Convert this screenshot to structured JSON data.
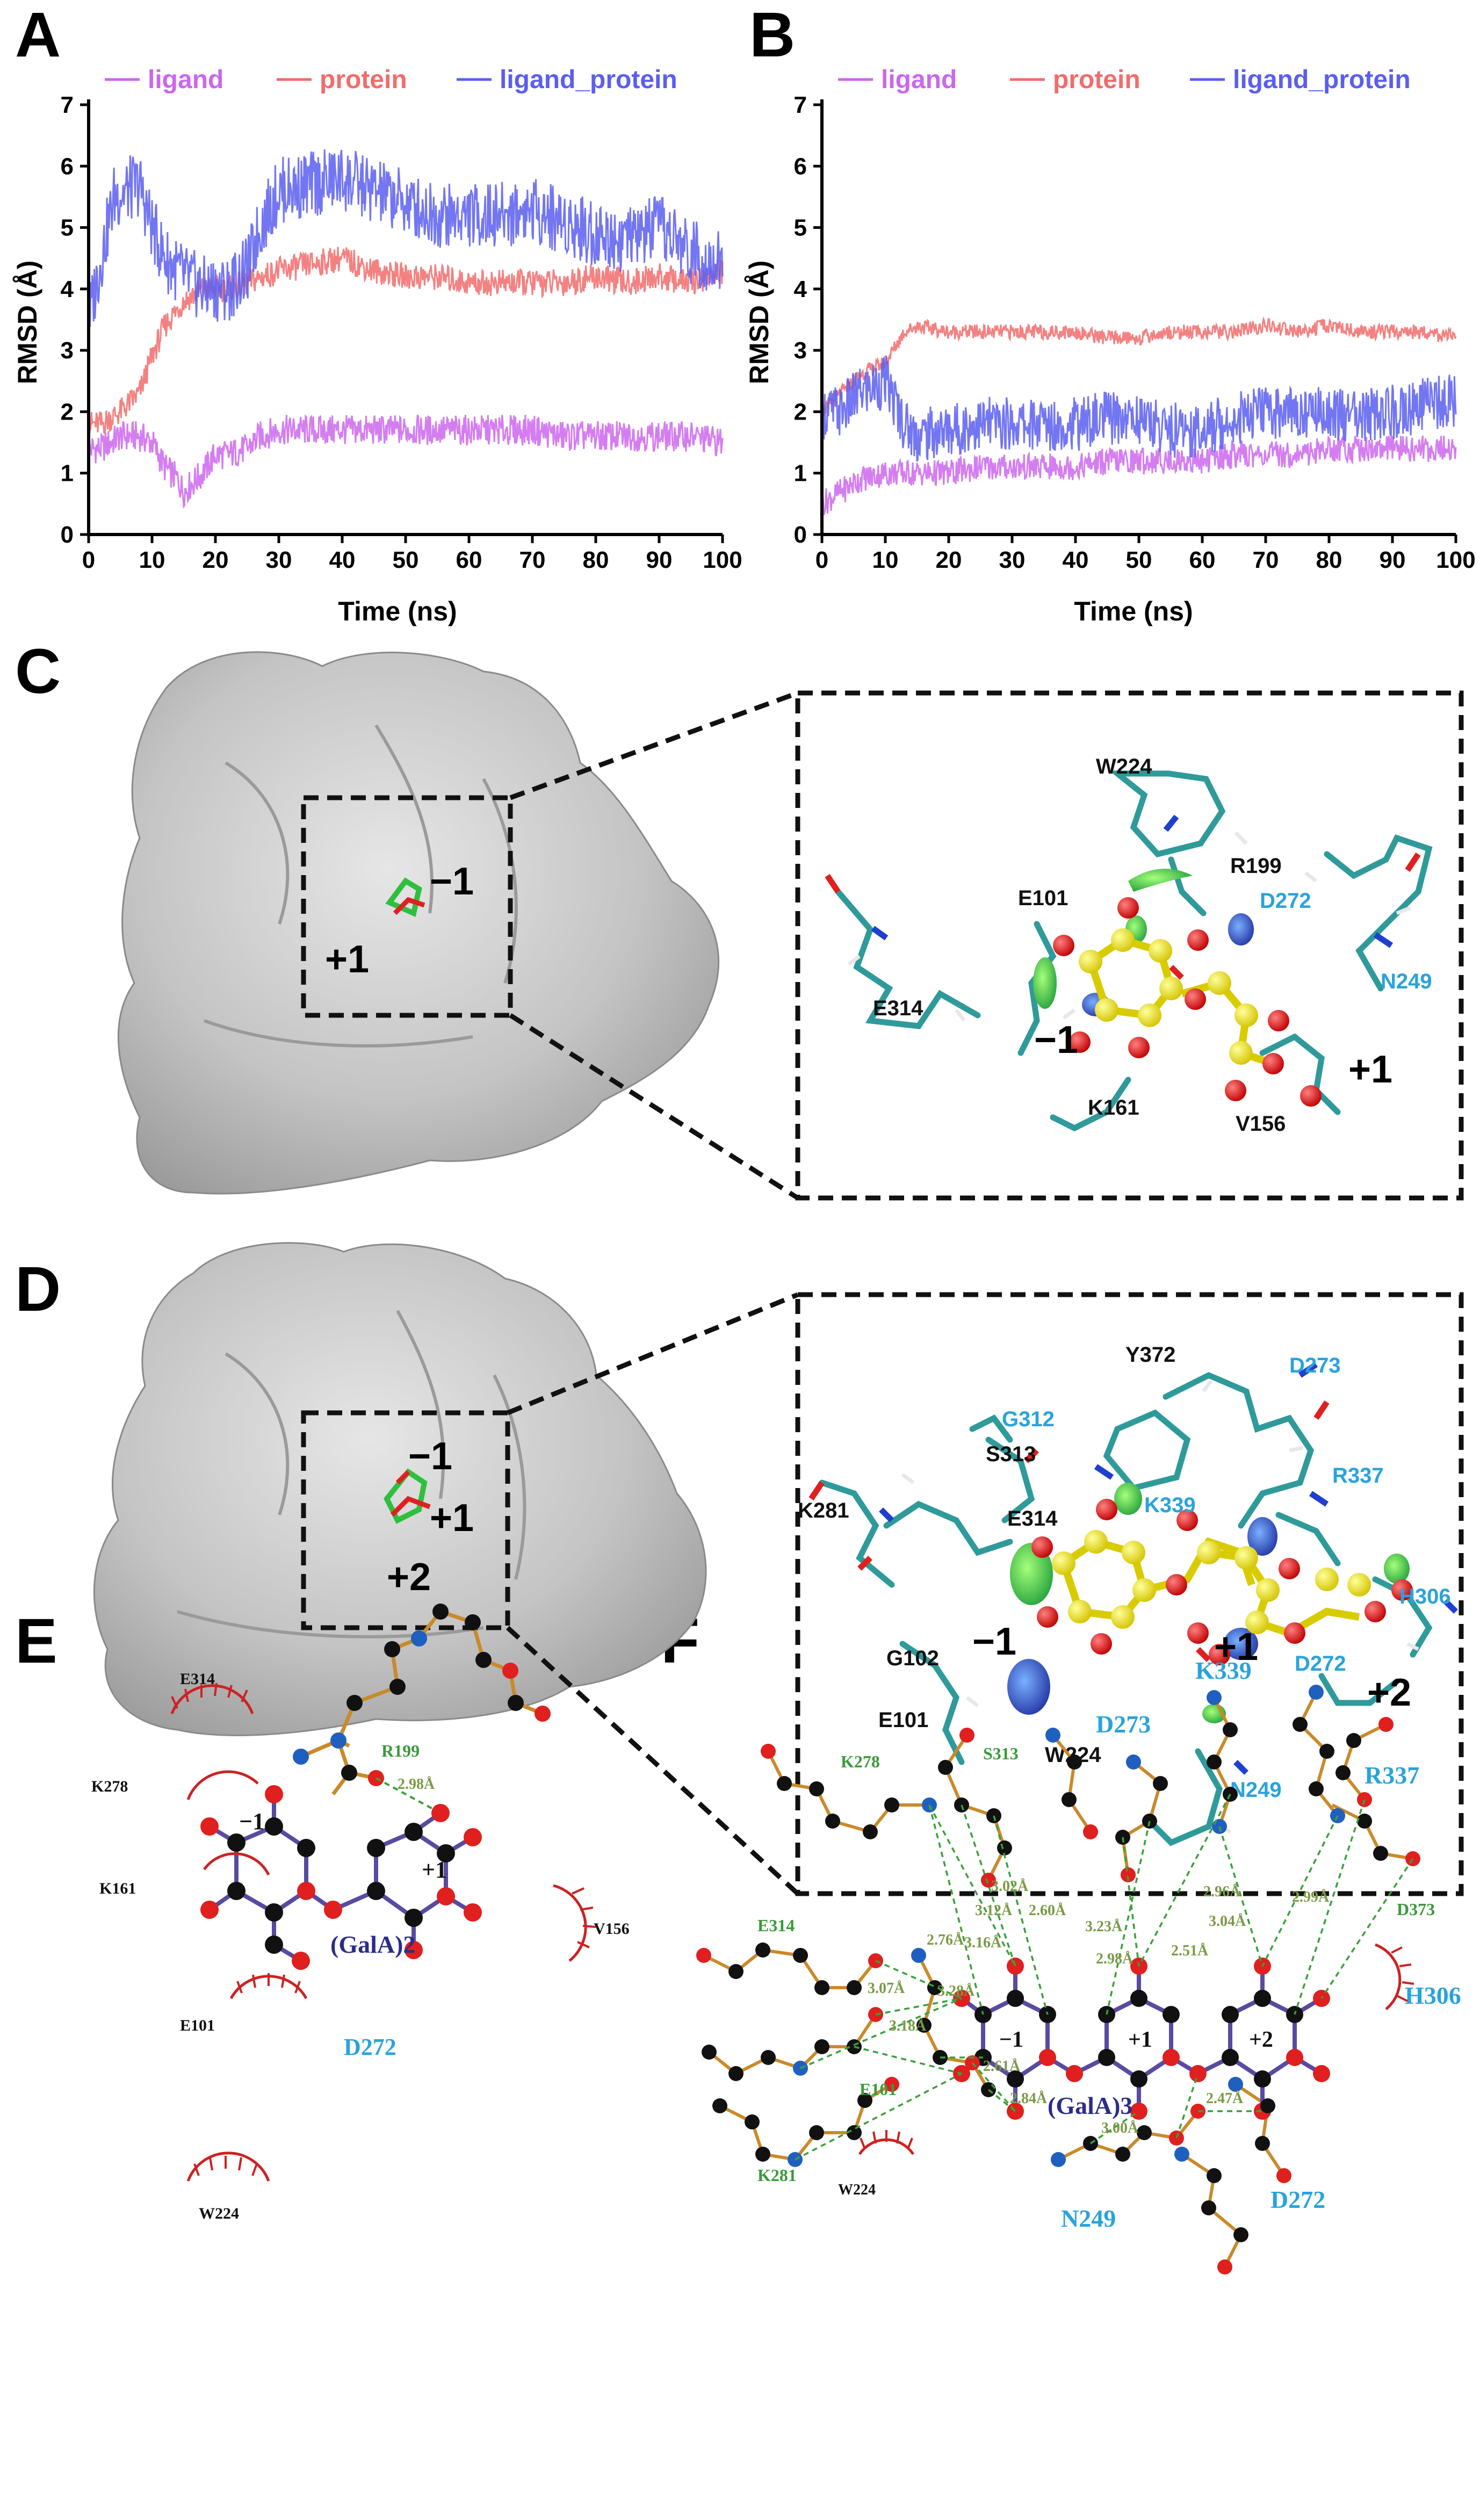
{
  "panel_letters": [
    "A",
    "B",
    "C",
    "D",
    "E",
    "F"
  ],
  "chart_data": [
    {
      "panel": "A",
      "type": "line",
      "xlabel": "Time (ns)",
      "ylabel": "RMSD (Å)",
      "xlim": [
        0,
        100
      ],
      "ylim": [
        0,
        7
      ],
      "x_ticks": [
        "0",
        "10",
        "20",
        "30",
        "40",
        "50",
        "60",
        "70",
        "80",
        "90",
        "100"
      ],
      "y_ticks": [
        "0",
        "1",
        "2",
        "3",
        "4",
        "5",
        "6",
        "7"
      ],
      "legend": "top",
      "series": [
        {
          "name": "ligand",
          "color": "#cc66ee",
          "x": [
            0,
            2,
            5,
            8,
            10,
            12,
            14,
            15,
            16,
            18,
            20,
            22,
            25,
            27,
            30,
            35,
            40,
            45,
            50,
            55,
            60,
            65,
            70,
            75,
            80,
            85,
            90,
            95,
            100
          ],
          "y": [
            1.4,
            1.4,
            1.6,
            1.6,
            1.5,
            1.1,
            0.9,
            0.7,
            0.8,
            1.0,
            1.3,
            1.3,
            1.4,
            1.6,
            1.7,
            1.7,
            1.7,
            1.7,
            1.7,
            1.7,
            1.7,
            1.7,
            1.7,
            1.6,
            1.6,
            1.6,
            1.6,
            1.6,
            1.5
          ]
        },
        {
          "name": "protein",
          "color": "#f26b6b",
          "x": [
            0,
            2,
            5,
            8,
            10,
            12,
            15,
            18,
            20,
            22,
            25,
            30,
            35,
            40,
            45,
            50,
            55,
            60,
            65,
            70,
            75,
            80,
            85,
            90,
            95,
            100
          ],
          "y": [
            1.8,
            1.8,
            2.0,
            2.3,
            2.9,
            3.4,
            3.8,
            4.0,
            4.0,
            4.0,
            4.1,
            4.3,
            4.4,
            4.5,
            4.3,
            4.2,
            4.2,
            4.1,
            4.1,
            4.1,
            4.1,
            4.2,
            4.1,
            4.2,
            4.1,
            4.3
          ]
        },
        {
          "name": "ligand_protein",
          "color": "#5a5ef0",
          "x": [
            0,
            2,
            4,
            6,
            8,
            10,
            12,
            15,
            18,
            20,
            22,
            25,
            27,
            30,
            35,
            40,
            45,
            50,
            55,
            60,
            65,
            70,
            75,
            80,
            85,
            90,
            95,
            100
          ],
          "y": [
            3.5,
            4.5,
            5.5,
            5.6,
            5.7,
            5.0,
            4.5,
            4.2,
            4.0,
            4.0,
            4.0,
            4.3,
            5.0,
            5.6,
            5.7,
            5.8,
            5.6,
            5.4,
            5.2,
            5.2,
            5.2,
            5.3,
            5.1,
            4.9,
            4.8,
            5.0,
            4.6,
            4.4
          ]
        }
      ]
    },
    {
      "panel": "B",
      "type": "line",
      "xlabel": "Time (ns)",
      "ylabel": "RMSD (Å)",
      "xlim": [
        0,
        100
      ],
      "ylim": [
        0,
        7
      ],
      "x_ticks": [
        "0",
        "10",
        "20",
        "30",
        "40",
        "50",
        "60",
        "70",
        "80",
        "90",
        "100"
      ],
      "y_ticks": [
        "0",
        "1",
        "2",
        "3",
        "4",
        "5",
        "6",
        "7"
      ],
      "legend": "top",
      "series": [
        {
          "name": "ligand",
          "color": "#cc66ee",
          "x": [
            0,
            3,
            6,
            10,
            15,
            20,
            25,
            30,
            35,
            40,
            45,
            50,
            55,
            60,
            65,
            70,
            75,
            80,
            85,
            90,
            95,
            100
          ],
          "y": [
            0.5,
            0.7,
            0.9,
            1.0,
            1.0,
            1.0,
            1.1,
            1.1,
            1.1,
            1.1,
            1.2,
            1.2,
            1.2,
            1.2,
            1.3,
            1.3,
            1.3,
            1.4,
            1.4,
            1.4,
            1.4,
            1.4
          ]
        },
        {
          "name": "protein",
          "color": "#f26b6b",
          "x": [
            0,
            3,
            6,
            10,
            13,
            15,
            20,
            25,
            30,
            35,
            40,
            45,
            50,
            55,
            60,
            65,
            70,
            75,
            80,
            85,
            90,
            95,
            100
          ],
          "y": [
            2.0,
            2.3,
            2.6,
            2.8,
            3.3,
            3.4,
            3.3,
            3.3,
            3.3,
            3.3,
            3.3,
            3.2,
            3.2,
            3.3,
            3.3,
            3.3,
            3.4,
            3.3,
            3.4,
            3.3,
            3.3,
            3.3,
            3.2
          ]
        },
        {
          "name": "ligand_protein",
          "color": "#5a5ef0",
          "x": [
            0,
            3,
            6,
            10,
            13,
            15,
            20,
            25,
            30,
            35,
            40,
            45,
            50,
            55,
            60,
            65,
            70,
            75,
            80,
            85,
            90,
            95,
            100
          ],
          "y": [
            2.0,
            2.0,
            2.3,
            2.5,
            1.8,
            1.6,
            1.7,
            1.8,
            1.8,
            1.8,
            1.8,
            1.9,
            1.9,
            1.7,
            1.7,
            1.9,
            2.0,
            2.0,
            2.0,
            1.9,
            2.0,
            2.1,
            2.2
          ]
        }
      ]
    }
  ],
  "panel_C": {
    "subsites_overview": [
      "−1",
      "+1"
    ],
    "residues_black": [
      "W224",
      "R199",
      "E101",
      "E314",
      "K161",
      "V156"
    ],
    "residues_blue": [
      "D272",
      "N249"
    ],
    "subsites": [
      "−1",
      "+1"
    ]
  },
  "panel_D": {
    "subsites_overview": [
      "−1",
      "+1",
      "+2"
    ],
    "residues_black": [
      "Y372",
      "S313",
      "E314",
      "K281",
      "G102",
      "E101",
      "W224"
    ],
    "residues_blue": [
      "D273",
      "G312",
      "R337",
      "K339",
      "H306",
      "D272",
      "N249"
    ],
    "subsites": [
      "−1",
      "+1",
      "+2"
    ]
  },
  "panel_E": {
    "hydrophobic_residues": [
      "E314",
      "K278",
      "K161",
      "E101",
      "W224",
      "V156"
    ],
    "hbond_residue": "R199",
    "highlight_residue": "D272",
    "distance": "2.98Å",
    "ligand": "(GalA)2",
    "rings": [
      "−1",
      "+1"
    ]
  },
  "panel_F": {
    "hbond_residues": [
      "K278",
      "S313",
      "E314",
      "E101",
      "K281",
      "D373"
    ],
    "highlight_residues": [
      "K339",
      "D273",
      "R337",
      "H306",
      "N249",
      "D272"
    ],
    "hydrophobic_residue": "W224",
    "distances": [
      "3.02Å",
      "3.12Å",
      "2.60Å",
      "2.76Å",
      "3.16Å",
      "3.07Å",
      "3.28Å",
      "3.18Å",
      "2.61Å",
      "2.84Å",
      "3.23Å",
      "2.98Å",
      "2.96Å",
      "3.04Å",
      "2.99Å",
      "2.51Å",
      "2.47Å",
      "3.00Å"
    ],
    "ligand": "(GalA)3",
    "rings": [
      "−1",
      "+1",
      "+2"
    ]
  },
  "colors": {
    "cyan_label": "#29a3dc",
    "green_label": "#3a9a3a",
    "ligand_bond": "#5a4aa0",
    "residue_bond": "#c98a2a",
    "hydrophobic_arc": "#cc2222",
    "oxygen": "#e01f1f",
    "nitrogen": "#1f5fbf",
    "carbon": "#111111",
    "surface": "#c8c8c8"
  }
}
